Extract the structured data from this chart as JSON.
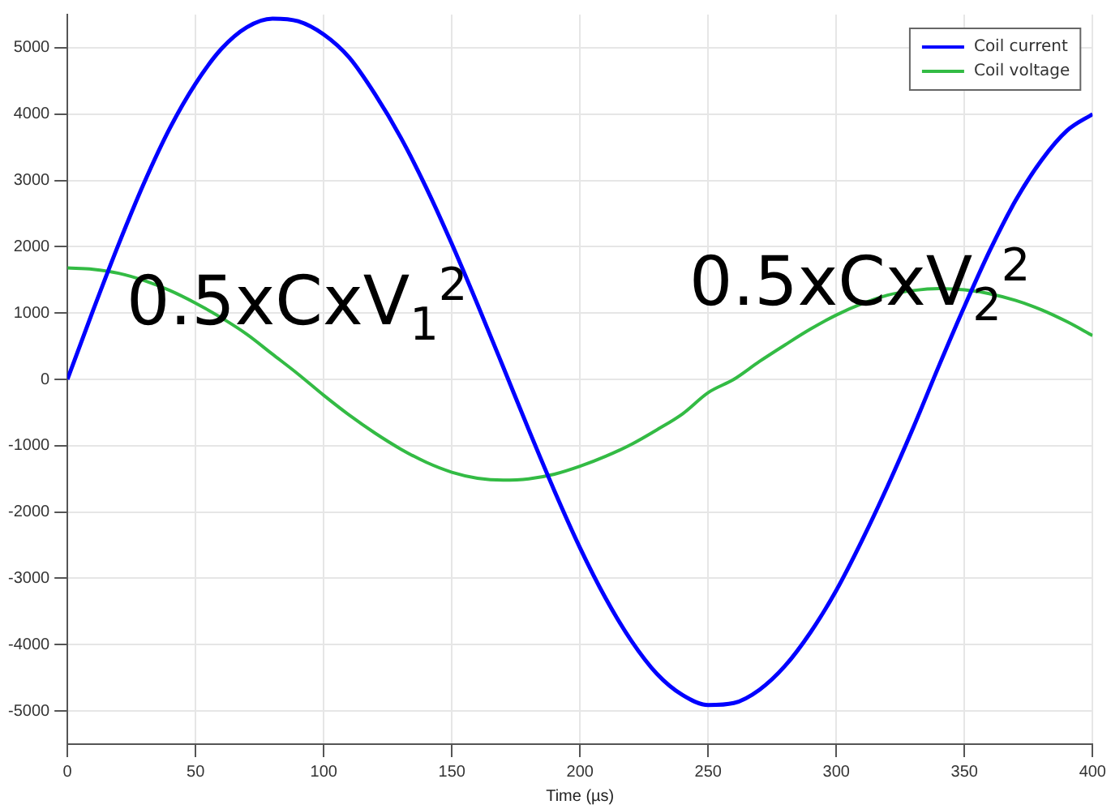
{
  "chart_data": {
    "type": "line",
    "xlabel": "Time (µs)",
    "x": [
      0,
      10,
      20,
      30,
      40,
      50,
      60,
      70,
      80,
      90,
      100,
      110,
      120,
      130,
      140,
      150,
      160,
      170,
      180,
      190,
      200,
      210,
      220,
      230,
      240,
      250,
      260,
      270,
      280,
      290,
      300,
      310,
      320,
      330,
      340,
      350,
      360,
      370,
      380,
      390,
      400
    ],
    "series": [
      {
        "name": "Coil current",
        "color": "#0000ff",
        "values": [
          0,
          1040,
          2040,
          2970,
          3790,
          4460,
          4980,
          5310,
          5440,
          5400,
          5200,
          4850,
          4300,
          3650,
          2890,
          2040,
          1130,
          190,
          -760,
          -1680,
          -2540,
          -3300,
          -3940,
          -4440,
          -4760,
          -4910,
          -4880,
          -4680,
          -4320,
          -3810,
          -3180,
          -2430,
          -1610,
          -730,
          200,
          1100,
          1950,
          2700,
          3300,
          3750,
          4000
        ]
      },
      {
        "name": "Coil voltage",
        "color": "#33bb44",
        "values": [
          1680,
          1660,
          1600,
          1490,
          1340,
          1150,
          930,
          680,
          380,
          80,
          -240,
          -540,
          -810,
          -1050,
          -1250,
          -1400,
          -1490,
          -1520,
          -1500,
          -1430,
          -1310,
          -1160,
          -980,
          -760,
          -520,
          -200,
          0,
          270,
          520,
          760,
          970,
          1140,
          1270,
          1340,
          1370,
          1350,
          1290,
          1190,
          1050,
          870,
          660
        ]
      }
    ],
    "xlim": [
      0,
      400
    ],
    "xticks": [
      0,
      50,
      100,
      150,
      200,
      250,
      300,
      350,
      400
    ],
    "ylim": [
      -5500,
      5500
    ],
    "yticks": [
      -5000,
      -4000,
      -3000,
      -2000,
      -1000,
      0,
      1000,
      2000,
      3000,
      4000,
      5000
    ],
    "grid": true,
    "legend": "top right",
    "marker": "none",
    "line_style": "solid",
    "annotations": [
      "0.5xCxV$_{1}$$^{2}$",
      "0.5xCxV$_{2}$$^{2}$"
    ]
  }
}
